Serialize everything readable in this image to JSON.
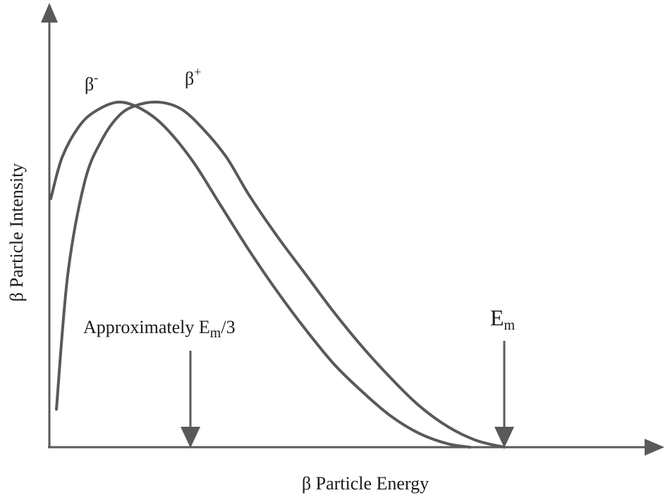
{
  "chart_data": {
    "type": "line",
    "xlabel": "β Particle Energy",
    "ylabel": "β Particle Intensity",
    "xlim": [
      0,
      1.0
    ],
    "ylim": [
      0,
      1.0
    ],
    "grid": false,
    "series": [
      {
        "name": "β",
        "superscript": "-",
        "color": "#595959",
        "x": [
          0.0,
          0.02,
          0.05,
          0.08,
          0.12,
          0.16,
          0.2,
          0.25,
          0.3,
          0.35,
          0.4,
          0.45,
          0.5,
          0.55,
          0.6,
          0.65,
          0.7,
          0.74
        ],
        "y": [
          0.72,
          0.84,
          0.93,
          0.975,
          1.0,
          0.98,
          0.93,
          0.83,
          0.7,
          0.57,
          0.45,
          0.34,
          0.24,
          0.16,
          0.09,
          0.04,
          0.01,
          0.0
        ]
      },
      {
        "name": "β",
        "superscript": "+",
        "color": "#595959",
        "x": [
          0.01,
          0.03,
          0.06,
          0.09,
          0.12,
          0.15,
          0.19,
          0.23,
          0.27,
          0.31,
          0.35,
          0.4,
          0.45,
          0.5,
          0.55,
          0.6,
          0.65,
          0.7,
          0.75,
          0.8
        ],
        "y": [
          0.11,
          0.5,
          0.77,
          0.89,
          0.96,
          0.99,
          1.0,
          0.98,
          0.92,
          0.84,
          0.73,
          0.61,
          0.5,
          0.39,
          0.29,
          0.2,
          0.12,
          0.06,
          0.02,
          0.0
        ]
      }
    ],
    "annotations": [
      {
        "text": "Approximately E",
        "subscript": "m",
        "suffix": "/3",
        "x": 0.25
      },
      {
        "text": "E",
        "subscript": "m",
        "suffix": "",
        "x": 0.8
      }
    ]
  }
}
